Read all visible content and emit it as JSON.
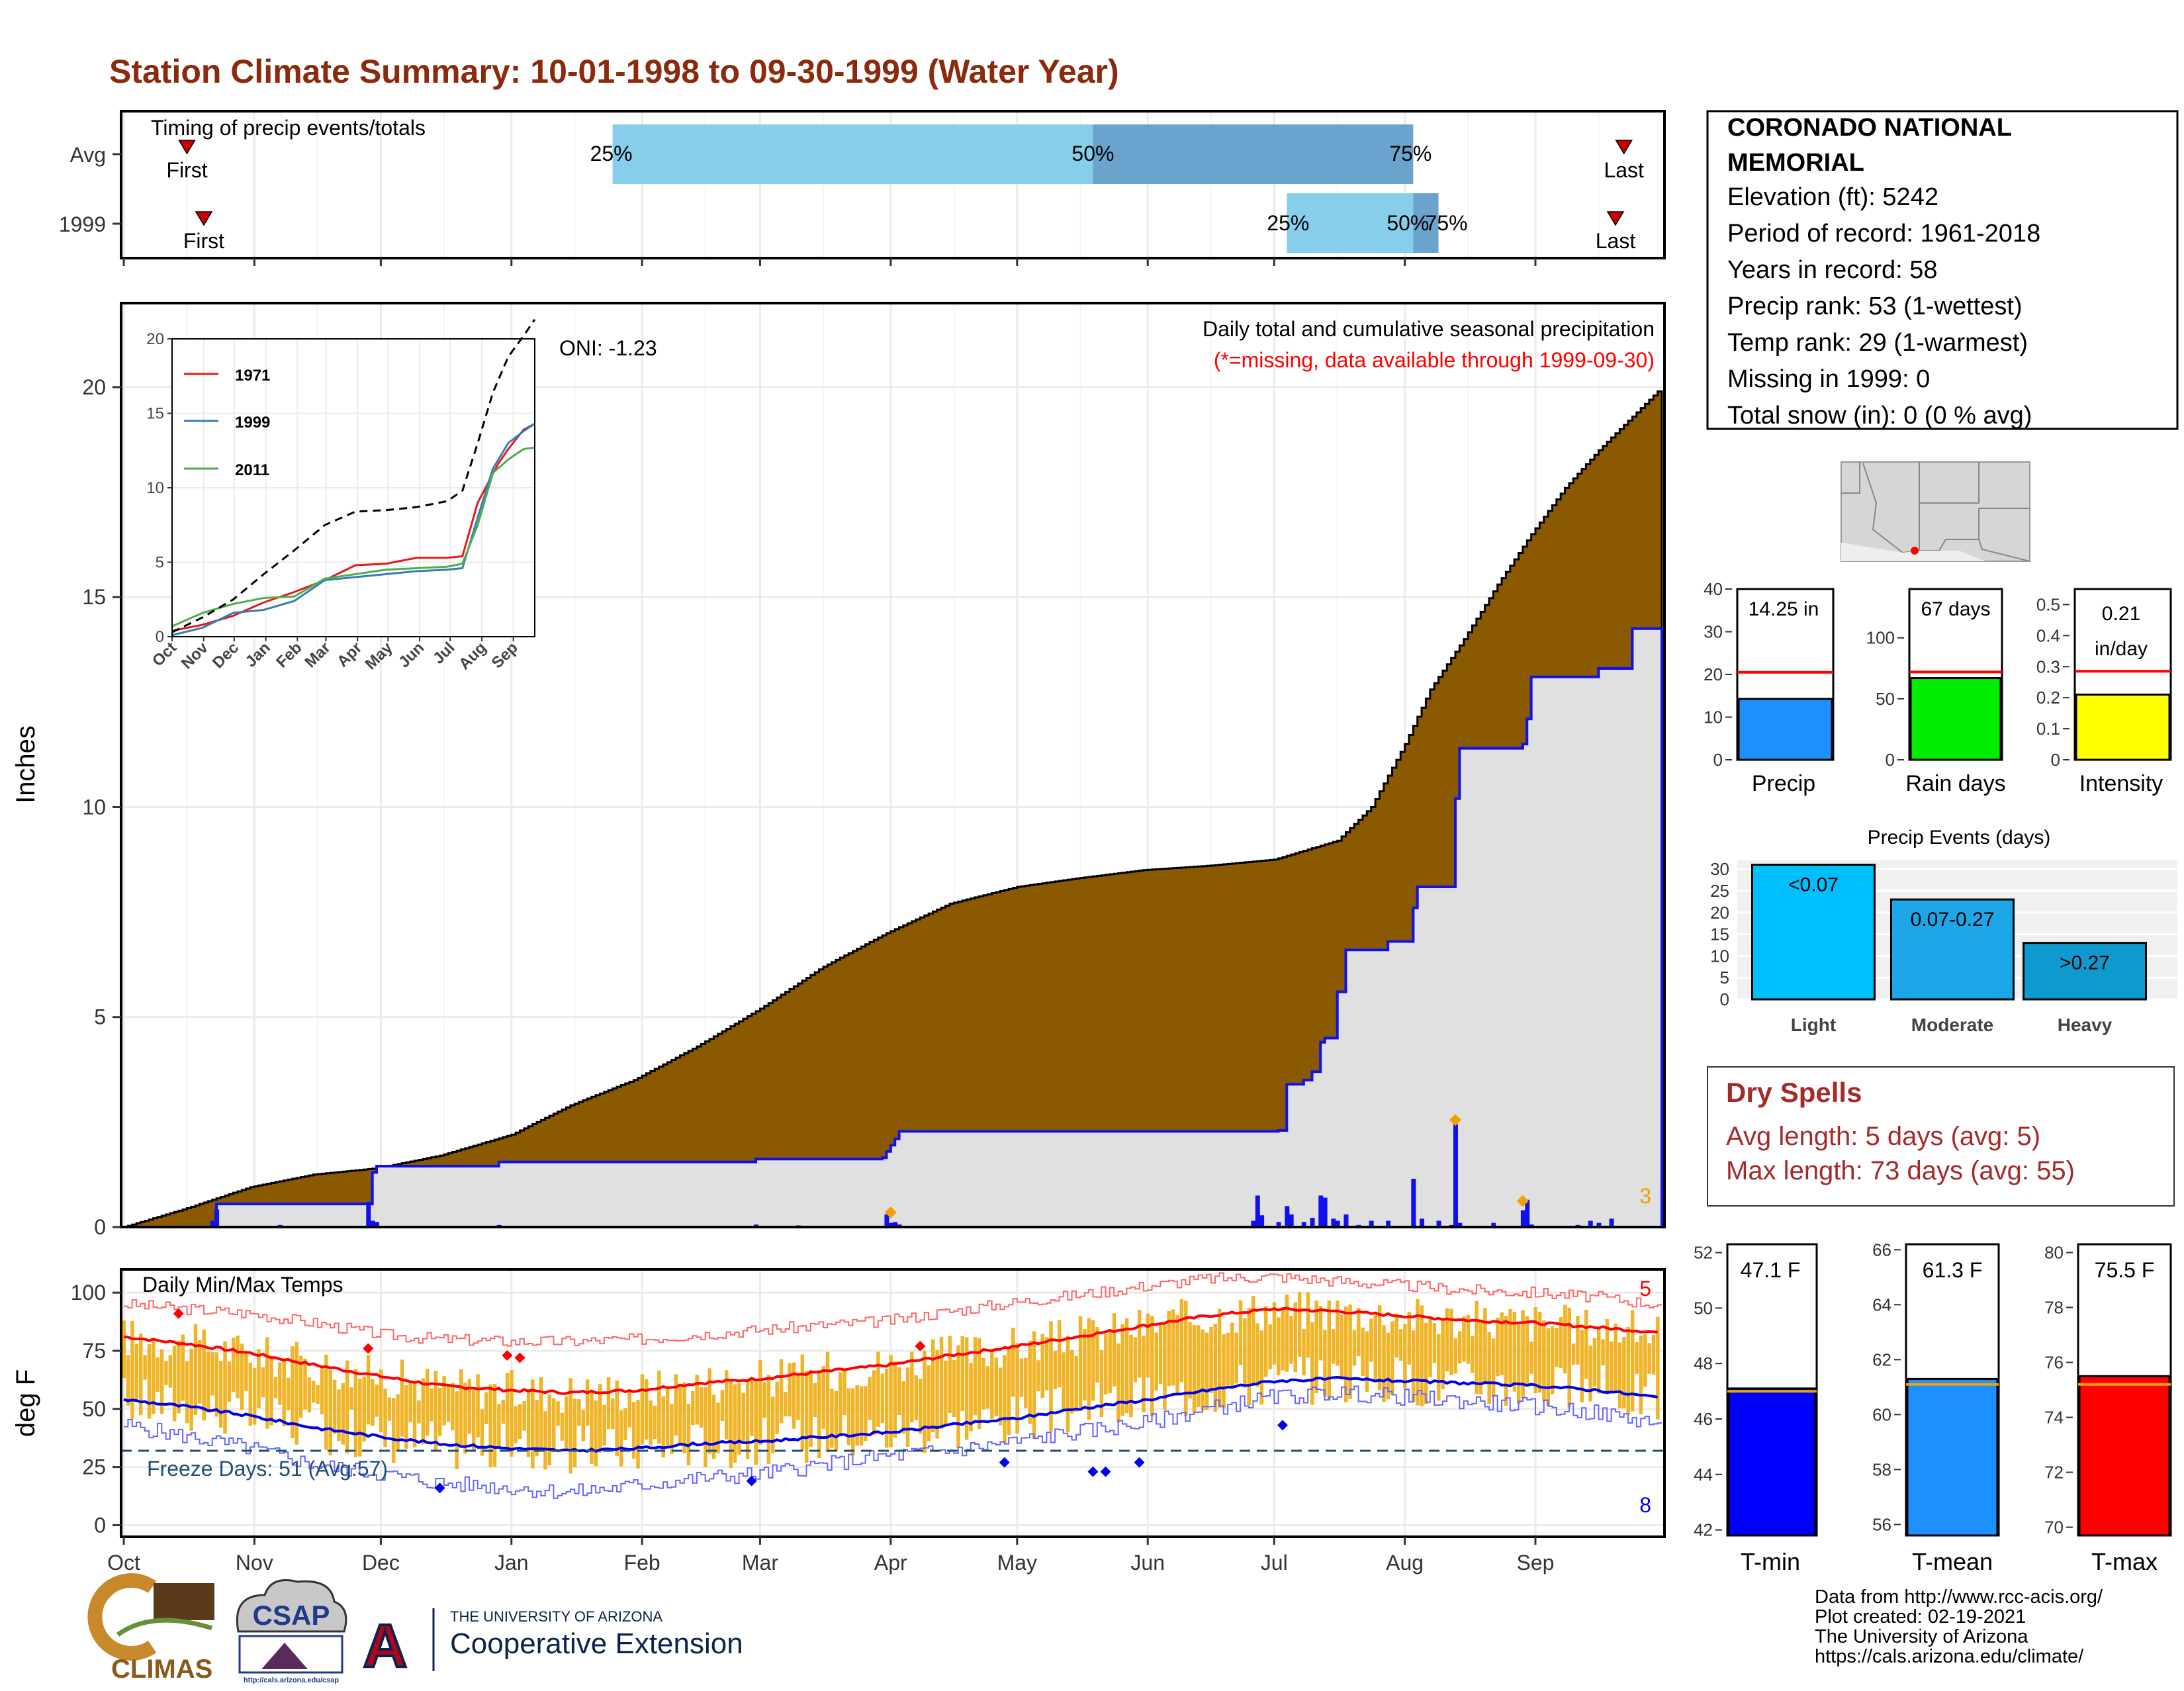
{
  "page": {
    "title": "Station Climate Summary: 10-01-1998 to 09-30-1999 (Water Year)",
    "colors": {
      "title": "#8B2A0C",
      "brown": "#8B5A00",
      "grey_area": "#E0E0E0",
      "blue": "#1010EE",
      "orange": "#F0B428",
      "red": "#FF0000"
    }
  },
  "months": [
    "Oct",
    "Nov",
    "Dec",
    "Jan",
    "Feb",
    "Mar",
    "Apr",
    "May",
    "Jun",
    "Jul",
    "Aug",
    "Sep"
  ],
  "timing": {
    "label": "Timing of precip events/totals",
    "rows": [
      {
        "label": "Avg",
        "first_day": 15,
        "first_label": "First",
        "p25_day": 116,
        "p50_day": 230,
        "p75_day": 306,
        "last_day": 356,
        "last_label": "Last"
      },
      {
        "label": "1999",
        "first_day": 19,
        "first_label": "First",
        "p25_day": 276,
        "p50_day": 306,
        "p75_day": 312,
        "last_day": 354,
        "last_label": "Last"
      }
    ],
    "p25_label": "25%",
    "p50_label": "50%",
    "p75_label": "75%",
    "colors": {
      "light": "#87CEEB",
      "dark": "#6AA3CC",
      "marker": "#CC0000"
    }
  },
  "precip_panel": {
    "ylabel": "Inches",
    "yticks": [
      0,
      5,
      10,
      15,
      20
    ],
    "ylim": [
      0,
      22
    ],
    "title": "Daily total and cumulative seasonal precipitation",
    "subtitle": "(*=missing, data available through 1999-09-30)",
    "oni": "ONI: -1.23",
    "corner_count": "3",
    "avg_cumulative": [
      [
        0,
        0
      ],
      [
        15,
        0.45
      ],
      [
        30,
        0.95
      ],
      [
        45,
        1.25
      ],
      [
        60,
        1.4
      ],
      [
        75,
        1.7
      ],
      [
        92,
        2.2
      ],
      [
        106,
        2.9
      ],
      [
        121,
        3.5
      ],
      [
        136,
        4.3
      ],
      [
        151,
        5.2
      ],
      [
        166,
        6.2
      ],
      [
        181,
        7.0
      ],
      [
        196,
        7.7
      ],
      [
        212,
        8.1
      ],
      [
        226,
        8.3
      ],
      [
        242,
        8.5
      ],
      [
        257,
        8.6
      ],
      [
        273,
        8.75
      ],
      [
        288,
        9.2
      ],
      [
        296,
        10.0
      ],
      [
        304,
        11.5
      ],
      [
        310,
        12.8
      ],
      [
        318,
        14.0
      ],
      [
        326,
        15.3
      ],
      [
        334,
        16.5
      ],
      [
        342,
        17.6
      ],
      [
        350,
        18.5
      ],
      [
        358,
        19.3
      ],
      [
        364,
        19.9
      ]
    ],
    "obs_cumulative": [
      [
        0,
        0
      ],
      [
        21,
        0.1
      ],
      [
        22,
        0.55
      ],
      [
        58,
        0.55
      ],
      [
        59,
        1.3
      ],
      [
        60,
        1.45
      ],
      [
        89,
        1.55
      ],
      [
        149,
        1.55
      ],
      [
        150,
        1.62
      ],
      [
        180,
        1.65
      ],
      [
        181,
        1.8
      ],
      [
        182,
        1.95
      ],
      [
        183,
        2.1
      ],
      [
        184,
        2.28
      ],
      [
        255,
        2.28
      ],
      [
        274,
        2.3
      ],
      [
        276,
        3.4
      ],
      [
        280,
        3.5
      ],
      [
        282,
        3.7
      ],
      [
        284,
        4.4
      ],
      [
        285,
        4.5
      ],
      [
        288,
        5.6
      ],
      [
        290,
        6.6
      ],
      [
        300,
        6.8
      ],
      [
        306,
        7.6
      ],
      [
        307,
        8.1
      ],
      [
        316,
        10.2
      ],
      [
        317,
        11.4
      ],
      [
        332,
        11.5
      ],
      [
        333,
        12.1
      ],
      [
        334,
        13.1
      ],
      [
        350,
        13.3
      ],
      [
        358,
        14.25
      ],
      [
        364,
        14.25
      ]
    ],
    "daily": [
      [
        21,
        0.15
      ],
      [
        22,
        0.42
      ],
      [
        37,
        0.05
      ],
      [
        58,
        0.6
      ],
      [
        59,
        0.15
      ],
      [
        60,
        0.12
      ],
      [
        89,
        0.05
      ],
      [
        115,
        0.03
      ],
      [
        150,
        0.06
      ],
      [
        160,
        0.04
      ],
      [
        181,
        0.3
      ],
      [
        182,
        0.1
      ],
      [
        183,
        0.12
      ],
      [
        184,
        0.06
      ],
      [
        268,
        0.15
      ],
      [
        269,
        0.75
      ],
      [
        270,
        0.28
      ],
      [
        274,
        0.12
      ],
      [
        276,
        0.5
      ],
      [
        277,
        0.3
      ],
      [
        280,
        0.12
      ],
      [
        282,
        0.22
      ],
      [
        284,
        0.75
      ],
      [
        285,
        0.7
      ],
      [
        287,
        0.2
      ],
      [
        288,
        0.15
      ],
      [
        290,
        0.3
      ],
      [
        293,
        0.05
      ],
      [
        296,
        0.15
      ],
      [
        300,
        0.15
      ],
      [
        306,
        1.15
      ],
      [
        308,
        0.2
      ],
      [
        312,
        0.15
      ],
      [
        315,
        0.05
      ],
      [
        316,
        2.45
      ],
      [
        317,
        0.1
      ],
      [
        325,
        0.1
      ],
      [
        332,
        0.4
      ],
      [
        333,
        0.65
      ],
      [
        334,
        0.06
      ],
      [
        345,
        0.05
      ],
      [
        348,
        0.15
      ],
      [
        350,
        0.1
      ],
      [
        353,
        0.2
      ]
    ],
    "orange_markers": [
      [
        182,
        0.35
      ],
      [
        316,
        2.55
      ],
      [
        332,
        0.62
      ]
    ]
  },
  "inset": {
    "yticks": [
      0,
      5,
      10,
      15,
      20
    ],
    "xticks": [
      "Oct",
      "Nov",
      "Dec",
      "Jan",
      "Feb",
      "Mar",
      "Apr",
      "May",
      "Jun",
      "Jul",
      "Aug",
      "Sep"
    ],
    "series": [
      {
        "name": "1971",
        "color": "#E41A1C",
        "points": [
          [
            0,
            0.4
          ],
          [
            30,
            0.8
          ],
          [
            60,
            1.4
          ],
          [
            90,
            2.3
          ],
          [
            120,
            3.0
          ],
          [
            150,
            3.8
          ],
          [
            180,
            4.8
          ],
          [
            210,
            4.9
          ],
          [
            240,
            5.3
          ],
          [
            270,
            5.3
          ],
          [
            285,
            5.4
          ],
          [
            300,
            9.0
          ],
          [
            310,
            10.3
          ],
          [
            320,
            11.6
          ],
          [
            330,
            12.6
          ],
          [
            345,
            13.9
          ],
          [
            356,
            14.3
          ]
        ]
      },
      {
        "name": "1999",
        "color": "#377EB8",
        "points": [
          [
            0,
            0.1
          ],
          [
            30,
            0.6
          ],
          [
            60,
            1.6
          ],
          [
            90,
            1.8
          ],
          [
            120,
            2.4
          ],
          [
            150,
            3.8
          ],
          [
            180,
            4.0
          ],
          [
            210,
            4.2
          ],
          [
            240,
            4.4
          ],
          [
            270,
            4.5
          ],
          [
            285,
            4.6
          ],
          [
            300,
            8.0
          ],
          [
            315,
            11.3
          ],
          [
            330,
            13.0
          ],
          [
            345,
            13.8
          ],
          [
            356,
            14.3
          ]
        ]
      },
      {
        "name": "2011",
        "color": "#4DAF4A",
        "points": [
          [
            0,
            0.7
          ],
          [
            30,
            1.6
          ],
          [
            60,
            2.2
          ],
          [
            90,
            2.6
          ],
          [
            120,
            2.7
          ],
          [
            150,
            3.9
          ],
          [
            180,
            4.2
          ],
          [
            210,
            4.5
          ],
          [
            240,
            4.6
          ],
          [
            270,
            4.7
          ],
          [
            285,
            4.9
          ],
          [
            300,
            7.5
          ],
          [
            315,
            11.0
          ],
          [
            330,
            11.9
          ],
          [
            345,
            12.6
          ],
          [
            356,
            12.7
          ]
        ]
      },
      {
        "name": "avg",
        "color": "#000000",
        "points": [
          [
            0,
            0.3
          ],
          [
            30,
            1.3
          ],
          [
            60,
            2.5
          ],
          [
            90,
            4.2
          ],
          [
            120,
            5.8
          ],
          [
            150,
            7.5
          ],
          [
            180,
            8.4
          ],
          [
            210,
            8.5
          ],
          [
            240,
            8.7
          ],
          [
            270,
            9.1
          ],
          [
            285,
            9.8
          ],
          [
            300,
            13.0
          ],
          [
            315,
            16.4
          ],
          [
            330,
            18.8
          ],
          [
            345,
            20.2
          ],
          [
            356,
            21.3
          ]
        ]
      }
    ]
  },
  "station": {
    "name_line1": "CORONADO NATIONAL",
    "name_line2": "MEMORIAL",
    "elevation": "Elevation (ft): 5242",
    "period": "Period of record: 1961-2018",
    "years": "Years in record: 58",
    "precip_rank": "Precip rank: 53 (1-wettest)",
    "temp_rank": "Temp rank: 29 (1-warmest)",
    "missing": "Missing in 1999: 0",
    "snow": "Total snow (in): 0 (0 % avg)"
  },
  "mini_bars": [
    {
      "label": "Precip",
      "value": 14.25,
      "value_label": "14.25 in",
      "avg": 20.5,
      "ymax": 40,
      "ticks": [
        0,
        10,
        20,
        30,
        40
      ],
      "color": "#1E90FF"
    },
    {
      "label": "Rain days",
      "value": 67,
      "value_label": "67 days",
      "avg": 72,
      "ymax": 140,
      "ticks": [
        0,
        50,
        100
      ],
      "color": "#00EE00"
    },
    {
      "label": "Intensity",
      "value": 0.21,
      "value_label": "0.21",
      "value_label2": "in/day",
      "avg": 0.285,
      "ymax": 0.55,
      "ticks": [
        0.0,
        0.1,
        0.2,
        0.3,
        0.4,
        0.5
      ],
      "color": "#FFFF00"
    }
  ],
  "events": {
    "title": "Precip Events (days)",
    "ticks": [
      0,
      5,
      10,
      15,
      20,
      25,
      30
    ],
    "categories": [
      "Light",
      "Moderate",
      "Heavy"
    ],
    "bar_labels": [
      "<0.07",
      "0.07-0.27",
      ">0.27"
    ],
    "values": [
      31,
      23,
      13
    ],
    "colors": [
      "#00BFFF",
      "#1EA7E8",
      "#0E9ACF"
    ]
  },
  "dry_spells": {
    "title": "Dry Spells",
    "avg": "Avg length: 5 days (avg: 5)",
    "max": "Max length: 73 days (avg: 55)",
    "color": "#A52A2A"
  },
  "temp_panel": {
    "ylabel": "deg F",
    "title": "Daily Min/Max Temps",
    "yticks": [
      0,
      25,
      50,
      75,
      100
    ],
    "ylim": [
      -5,
      110
    ],
    "freeze_label": "Freeze Days: 51 (Avg:57)",
    "freeze_line": 32,
    "max_count": "5",
    "min_count": "8",
    "avg_max_curve": [
      [
        0,
        81
      ],
      [
        15,
        78
      ],
      [
        30,
        74
      ],
      [
        45,
        69
      ],
      [
        61,
        64
      ],
      [
        75,
        60
      ],
      [
        92,
        58
      ],
      [
        106,
        57
      ],
      [
        122,
        58
      ],
      [
        136,
        61
      ],
      [
        151,
        63
      ],
      [
        166,
        66
      ],
      [
        182,
        69
      ],
      [
        196,
        73
      ],
      [
        212,
        77
      ],
      [
        226,
        81
      ],
      [
        243,
        86
      ],
      [
        257,
        90
      ],
      [
        273,
        93
      ],
      [
        288,
        92
      ],
      [
        304,
        90
      ],
      [
        320,
        88
      ],
      [
        335,
        87
      ],
      [
        350,
        85
      ],
      [
        364,
        83
      ]
    ],
    "avg_min_curve": [
      [
        0,
        54
      ],
      [
        15,
        51
      ],
      [
        30,
        47
      ],
      [
        45,
        42
      ],
      [
        61,
        38
      ],
      [
        75,
        35
      ],
      [
        92,
        33
      ],
      [
        106,
        32
      ],
      [
        122,
        33
      ],
      [
        136,
        35
      ],
      [
        151,
        36
      ],
      [
        166,
        38
      ],
      [
        182,
        40
      ],
      [
        196,
        43
      ],
      [
        212,
        46
      ],
      [
        226,
        50
      ],
      [
        243,
        54
      ],
      [
        257,
        58
      ],
      [
        273,
        62
      ],
      [
        288,
        63
      ],
      [
        304,
        62
      ],
      [
        320,
        61
      ],
      [
        335,
        60
      ],
      [
        350,
        58
      ],
      [
        364,
        55
      ]
    ],
    "record_max_curve": [
      [
        0,
        95
      ],
      [
        15,
        93
      ],
      [
        30,
        91
      ],
      [
        45,
        87
      ],
      [
        61,
        82
      ],
      [
        75,
        80
      ],
      [
        92,
        79
      ],
      [
        106,
        79
      ],
      [
        122,
        80
      ],
      [
        136,
        82
      ],
      [
        151,
        84
      ],
      [
        166,
        86
      ],
      [
        182,
        88
      ],
      [
        196,
        92
      ],
      [
        212,
        96
      ],
      [
        226,
        99
      ],
      [
        243,
        103
      ],
      [
        257,
        106
      ],
      [
        273,
        107
      ],
      [
        288,
        105
      ],
      [
        304,
        103
      ],
      [
        320,
        101
      ],
      [
        335,
        100
      ],
      [
        350,
        98
      ],
      [
        364,
        95
      ]
    ],
    "record_min_curve": [
      [
        0,
        43
      ],
      [
        15,
        38
      ],
      [
        30,
        33
      ],
      [
        45,
        26
      ],
      [
        61,
        22
      ],
      [
        75,
        18
      ],
      [
        92,
        16
      ],
      [
        106,
        14
      ],
      [
        122,
        17
      ],
      [
        136,
        20
      ],
      [
        151,
        22
      ],
      [
        166,
        26
      ],
      [
        182,
        30
      ],
      [
        196,
        32
      ],
      [
        212,
        36
      ],
      [
        226,
        40
      ],
      [
        243,
        44
      ],
      [
        257,
        50
      ],
      [
        273,
        55
      ],
      [
        288,
        57
      ],
      [
        304,
        55
      ],
      [
        320,
        53
      ],
      [
        335,
        51
      ],
      [
        350,
        48
      ],
      [
        364,
        44
      ]
    ],
    "hi_markers": [
      [
        13,
        91
      ],
      [
        58,
        76
      ],
      [
        91,
        73
      ],
      [
        94,
        72
      ],
      [
        189,
        77
      ]
    ],
    "lo_markers": [
      [
        75,
        16
      ],
      [
        149,
        19
      ],
      [
        209,
        27
      ],
      [
        230,
        23
      ],
      [
        233,
        23
      ],
      [
        241,
        27
      ],
      [
        275,
        43
      ]
    ]
  },
  "temp_bars": [
    {
      "label": "T-min",
      "value": 47.1,
      "value_label": "47.1 F",
      "avg": 47.0,
      "ymin": 41.8,
      "ymax": 52.3,
      "ticks": [
        42,
        44,
        46,
        48,
        50,
        52
      ],
      "color": "#0000FF"
    },
    {
      "label": "T-mean",
      "value": 61.3,
      "value_label": "61.3 F",
      "avg": 61.1,
      "ymin": 55.6,
      "ymax": 66.2,
      "ticks": [
        56,
        58,
        60,
        62,
        64,
        66
      ],
      "color": "#1E90FF"
    },
    {
      "label": "T-max",
      "value": 75.5,
      "value_label": "75.5 F",
      "avg": 75.2,
      "ymin": 69.7,
      "ymax": 80.3,
      "ticks": [
        70,
        72,
        74,
        76,
        78,
        80
      ],
      "color": "#FF0000"
    }
  ],
  "footer": {
    "credit1": "Data from http://www.rcc-acis.org/",
    "credit2": "Plot created: 02-19-2021",
    "credit3": "The University of Arizona",
    "credit4": "https://cals.arizona.edu/climate/",
    "climas": "CLIMAS",
    "csap": "CSAP",
    "csap_url": "http://cals.arizona.edu/csap",
    "ua_small": "THE UNIVERSITY OF ARIZONA",
    "ua_large": "Cooperative Extension",
    "ua_letter": "A"
  }
}
